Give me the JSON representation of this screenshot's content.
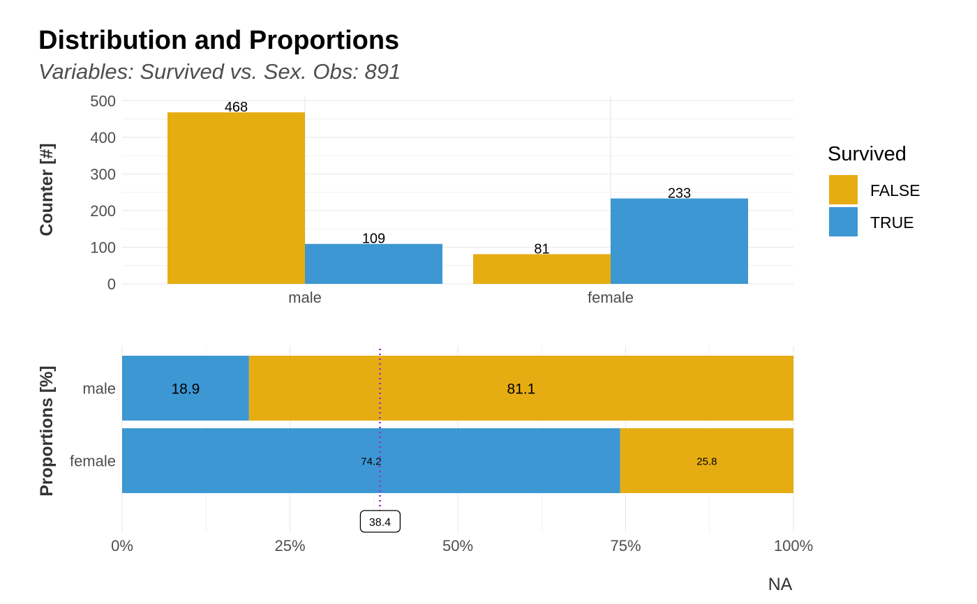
{
  "title": "Distribution and Proportions",
  "subtitle": "Variables: Survived vs. Sex. Obs: 891",
  "colors": {
    "FALSE": "#E6AD12",
    "TRUE": "#3D97D3",
    "mean_line": "#9933CC",
    "grid": "#e6e6e6"
  },
  "legend": {
    "title": "Survived",
    "items": [
      {
        "label": "FALSE",
        "color": "#E6AD12"
      },
      {
        "label": "TRUE",
        "color": "#3D97D3"
      }
    ]
  },
  "chart_data": [
    {
      "type": "bar",
      "ylabel": "Counter [#]",
      "xlabel": "",
      "categories": [
        "male",
        "female"
      ],
      "series": [
        {
          "name": "FALSE",
          "values": [
            468,
            81
          ]
        },
        {
          "name": "TRUE",
          "values": [
            109,
            233
          ]
        }
      ],
      "ylim": [
        0,
        510
      ],
      "yticks": [
        0,
        100,
        200,
        300,
        400,
        500
      ],
      "grid": true
    },
    {
      "type": "bar",
      "orientation": "horizontal",
      "stacked": true,
      "ylabel": "Proportions [%]",
      "xlabel": "NA",
      "categories": [
        "male",
        "female"
      ],
      "series": [
        {
          "name": "TRUE",
          "values": [
            18.9,
            74.2
          ]
        },
        {
          "name": "FALSE",
          "values": [
            81.1,
            25.8
          ]
        }
      ],
      "xlim": [
        0,
        100
      ],
      "xticks": [
        "0%",
        "25%",
        "50%",
        "75%",
        "100%"
      ],
      "reference_line": {
        "value": 38.4,
        "label": "38.4",
        "style": "dotted"
      },
      "grid": true
    }
  ]
}
